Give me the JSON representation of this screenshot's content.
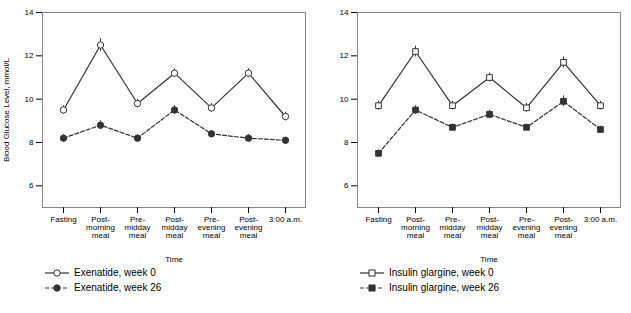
{
  "chart_data": [
    {
      "type": "line",
      "xlabel": "Time",
      "ylabel": "Blood Glucose Level, mmol/L",
      "categories": [
        "Fasting",
        "Post-\nmorning\nmeal",
        "Pre-\nmidday\nmeal",
        "Post-\nmidday\nmeal",
        "Pre-\nevening\nmeal",
        "Post-\nevening\nmeal",
        "3:00 a.m."
      ],
      "ylim": [
        5,
        14
      ],
      "yticks": [
        6,
        8,
        10,
        12,
        14
      ],
      "grid": false,
      "legend": "bottom",
      "series": [
        {
          "name": "Exenatide, week 0",
          "color": "#333333",
          "marker": "open_circle",
          "line_style": "solid",
          "values": [
            9.5,
            12.5,
            9.8,
            11.2,
            9.6,
            11.2,
            9.2
          ],
          "errors": [
            0.2,
            0.3,
            0.2,
            0.2,
            0.2,
            0.2,
            0.2
          ]
        },
        {
          "name": "Exenatide, week 26",
          "color": "#333333",
          "marker": "filled_circle",
          "line_style": "dashed",
          "values": [
            8.2,
            8.8,
            8.2,
            9.5,
            8.4,
            8.2,
            8.1
          ],
          "errors": [
            0.15,
            0.2,
            0.15,
            0.2,
            0.15,
            0.15,
            0.15
          ]
        }
      ]
    },
    {
      "type": "line",
      "xlabel": "Time",
      "categories": [
        "Fasting",
        "Post-\nmorning\nmeal",
        "Pre-\nmidday\nmeal",
        "Post-\nmidday\nmeal",
        "Pre-\nevening\nmeal",
        "Post-\nevening\nmeal",
        "3:00 a.m."
      ],
      "ylim": [
        5,
        14
      ],
      "yticks": [
        6,
        8,
        10,
        12,
        14
      ],
      "grid": false,
      "legend": "bottom",
      "series": [
        {
          "name": "Insulin glargine, week 0",
          "color": "#333333",
          "marker": "open_square",
          "line_style": "solid",
          "values": [
            9.7,
            12.2,
            9.7,
            11.0,
            9.6,
            11.7,
            9.7
          ],
          "errors": [
            0.2,
            0.25,
            0.2,
            0.2,
            0.2,
            0.25,
            0.2
          ]
        },
        {
          "name": "Insulin glargine, week 26",
          "color": "#333333",
          "marker": "filled_square",
          "line_style": "dashed",
          "values": [
            7.5,
            9.5,
            8.7,
            9.3,
            8.7,
            9.9,
            8.6
          ],
          "errors": [
            0.15,
            0.2,
            0.15,
            0.2,
            0.15,
            0.25,
            0.15
          ]
        }
      ]
    }
  ]
}
